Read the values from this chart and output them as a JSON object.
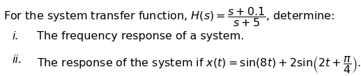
{
  "background_color": "#ffffff",
  "text_color": "#000000",
  "main_line": "For the system transfer function, $H(s) = \\dfrac{s+0.1}{s+5}$, determine:",
  "item_i_label": "i.",
  "item_i_text": "The frequency response of a system.",
  "item_ii_label": "ii.",
  "item_ii_text": "The response of the system if $x(t) = \\sin(8t) + 2\\sin\\!\\left(2t + \\dfrac{\\pi}{4}\\right)$.",
  "fontsize_main": 11.5,
  "fontsize_items": 11.5,
  "fig_width": 5.18,
  "fig_height": 1.1,
  "dpi": 100
}
